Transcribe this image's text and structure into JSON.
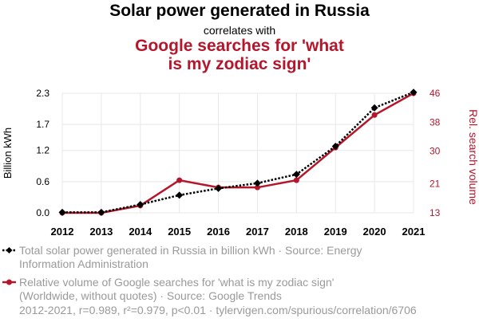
{
  "header": {
    "title": "Solar power generated in Russia",
    "subtitle": "correlates with",
    "title2_line1": "Google searches for 'what",
    "title2_line2": "is my zodiac sign'"
  },
  "legend": {
    "series1_line1": "Total solar power generated in Russia in billion kWh · Source: Energy",
    "series1_line2": "Information Administration",
    "series2_line1": "Relative volume of Google searches for 'what is my zodiac sign'",
    "series2_line2": "(Worldwide, without quotes) · Source: Google Trends"
  },
  "footer": "2012-2021, r=0.989, r²=0.979, p<0.01 · tylervigen.com/spurious/correlation/6706",
  "colors": {
    "series1": "#000000",
    "series2": "#b5162b",
    "axis_text": "#000000",
    "muted": "#9a9a9a"
  },
  "chart_data": {
    "type": "line",
    "x": [
      2012,
      2013,
      2014,
      2015,
      2016,
      2017,
      2018,
      2019,
      2020,
      2021
    ],
    "left_axis": {
      "label": "Billion kWh",
      "ticks": [
        "0.0",
        "0.6",
        "1.2",
        "1.7",
        "2.3"
      ],
      "tick_values": [
        0.0,
        0.6,
        1.2,
        1.7,
        2.3
      ],
      "ylim": [
        0.0,
        2.3
      ]
    },
    "right_axis": {
      "label": "Rel. search volume",
      "ticks": [
        "13",
        "21",
        "30",
        "38",
        "46"
      ],
      "tick_values": [
        13,
        21,
        30,
        38,
        46
      ],
      "ylim": [
        13,
        46
      ]
    },
    "grid": true,
    "series": [
      {
        "axis": "left",
        "marker": "diamond",
        "style": "dotted",
        "values": [
          0.01,
          0.01,
          0.16,
          0.34,
          0.47,
          0.57,
          0.74,
          1.28,
          2.02,
          2.32
        ]
      },
      {
        "axis": "right",
        "marker": "circle",
        "style": "solid",
        "values": [
          13,
          13,
          15,
          22,
          20,
          20,
          22,
          31,
          40,
          46
        ]
      }
    ]
  }
}
